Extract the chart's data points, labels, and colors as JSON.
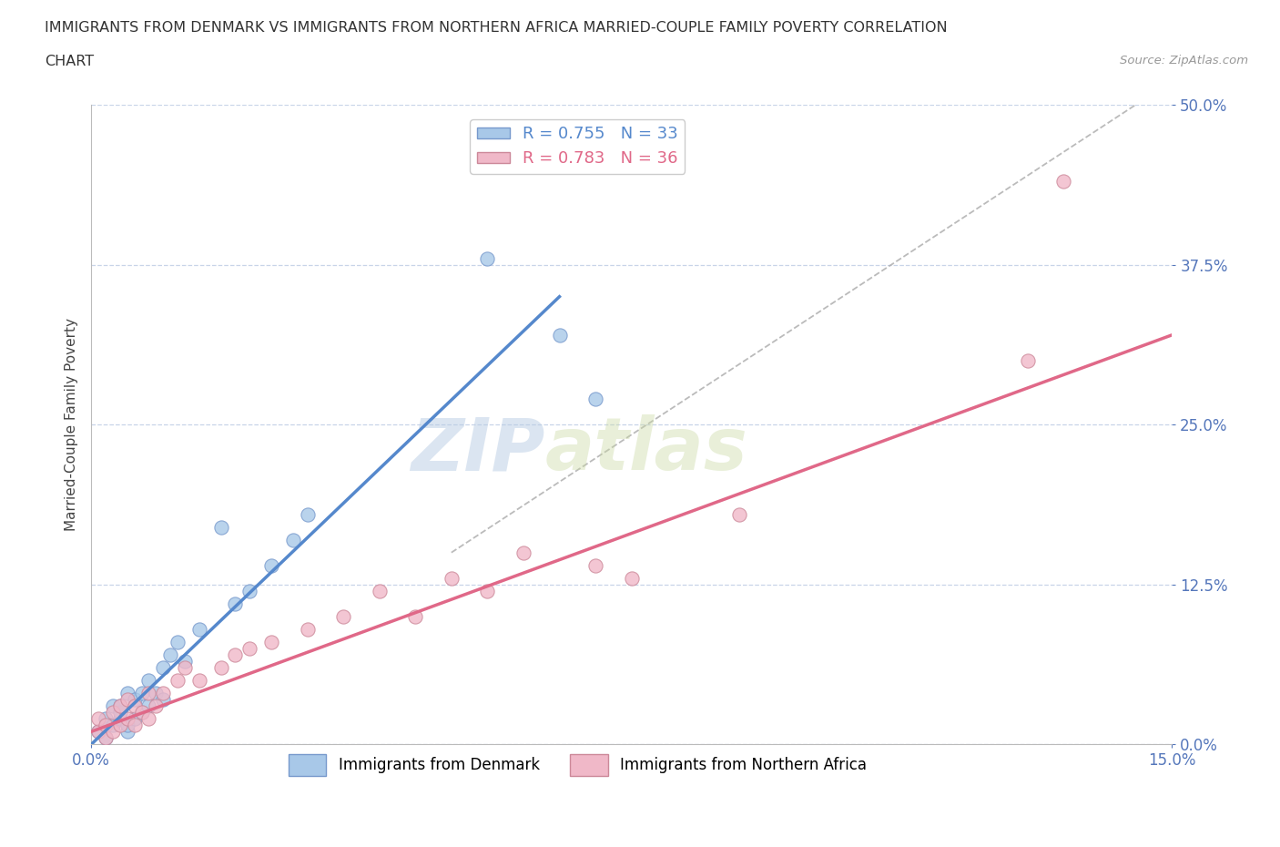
{
  "title_line1": "IMMIGRANTS FROM DENMARK VS IMMIGRANTS FROM NORTHERN AFRICA MARRIED-COUPLE FAMILY POVERTY CORRELATION",
  "title_line2": "CHART",
  "source": "Source: ZipAtlas.com",
  "ylabel": "Married-Couple Family Poverty",
  "xlim": [
    0,
    0.15
  ],
  "ylim": [
    0,
    0.5
  ],
  "yticks": [
    0,
    0.125,
    0.25,
    0.375,
    0.5
  ],
  "xticks": [
    0.0,
    0.15
  ],
  "denmark_color": "#a8c8e8",
  "denmark_line_color": "#5588cc",
  "denmark_edge_color": "#7799cc",
  "nafrica_color": "#f0b8c8",
  "nafrica_line_color": "#e06888",
  "nafrica_edge_color": "#cc8899",
  "legend_denmark_label": "R = 0.755   N = 33",
  "legend_nafrica_label": "R = 0.783   N = 36",
  "legend_bottom_denmark": "Immigrants from Denmark",
  "legend_bottom_nafrica": "Immigrants from Northern Africa",
  "watermark_zip": "ZIP",
  "watermark_atlas": "atlas",
  "background_color": "#ffffff",
  "grid_color": "#c8d4e8",
  "title_color": "#333333",
  "axis_label_color": "#334466",
  "tick_color": "#5577bb",
  "denmark_x": [
    0.001,
    0.002,
    0.002,
    0.003,
    0.003,
    0.004,
    0.004,
    0.004,
    0.005,
    0.005,
    0.005,
    0.006,
    0.006,
    0.007,
    0.007,
    0.008,
    0.008,
    0.009,
    0.01,
    0.01,
    0.011,
    0.012,
    0.013,
    0.015,
    0.018,
    0.02,
    0.022,
    0.025,
    0.028,
    0.03,
    0.055,
    0.065,
    0.07
  ],
  "denmark_y": [
    0.01,
    0.005,
    0.02,
    0.015,
    0.03,
    0.02,
    0.025,
    0.03,
    0.01,
    0.015,
    0.04,
    0.02,
    0.035,
    0.025,
    0.04,
    0.03,
    0.05,
    0.04,
    0.035,
    0.06,
    0.07,
    0.08,
    0.065,
    0.09,
    0.17,
    0.11,
    0.12,
    0.14,
    0.16,
    0.18,
    0.38,
    0.32,
    0.27
  ],
  "nafrica_x": [
    0.001,
    0.001,
    0.002,
    0.002,
    0.003,
    0.003,
    0.004,
    0.004,
    0.005,
    0.005,
    0.006,
    0.006,
    0.007,
    0.008,
    0.008,
    0.009,
    0.01,
    0.012,
    0.013,
    0.015,
    0.018,
    0.02,
    0.022,
    0.025,
    0.03,
    0.035,
    0.04,
    0.045,
    0.05,
    0.055,
    0.06,
    0.07,
    0.075,
    0.09,
    0.13,
    0.135
  ],
  "nafrica_y": [
    0.01,
    0.02,
    0.005,
    0.015,
    0.01,
    0.025,
    0.015,
    0.03,
    0.02,
    0.035,
    0.015,
    0.03,
    0.025,
    0.02,
    0.04,
    0.03,
    0.04,
    0.05,
    0.06,
    0.05,
    0.06,
    0.07,
    0.075,
    0.08,
    0.09,
    0.1,
    0.12,
    0.1,
    0.13,
    0.12,
    0.15,
    0.14,
    0.13,
    0.18,
    0.3,
    0.44
  ],
  "dk_line_x0": 0.0,
  "dk_line_y0": 0.0,
  "dk_line_x1": 0.065,
  "dk_line_y1": 0.35,
  "na_line_x0": 0.0,
  "na_line_y0": 0.01,
  "na_line_x1": 0.15,
  "na_line_y1": 0.32,
  "ref_line_x0": 0.05,
  "ref_line_y0": 0.15,
  "ref_line_x1": 0.145,
  "ref_line_y1": 0.5
}
